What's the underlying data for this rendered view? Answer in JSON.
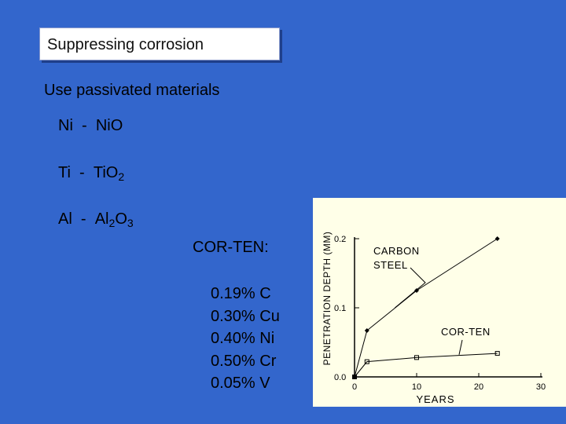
{
  "slide": {
    "title": "Suppressing corrosion",
    "subtitle": "Use passivated materials",
    "pairs": [
      {
        "metal": "Ni",
        "sep": "-",
        "oxide_base": "NiO",
        "oxide_sub": ""
      },
      {
        "metal": "Ti",
        "sep": "-",
        "oxide_base": "TiO",
        "oxide_sub": "2"
      },
      {
        "metal": "Al",
        "sep": "-",
        "oxide_base": "Al",
        "oxide_sub": "2",
        "oxide_rest": "O",
        "oxide_sub2": "3"
      }
    ],
    "corten_label": "COR-TEN:",
    "composition": [
      {
        "percent": "0.19%",
        "element": "C"
      },
      {
        "percent": "0.30%",
        "element": "Cu"
      },
      {
        "percent": "0.40%",
        "element": "Ni"
      },
      {
        "percent": "0.50%",
        "element": "Cr"
      },
      {
        "percent": "0.05%",
        "element": "V"
      }
    ]
  },
  "chart_data": {
    "type": "line",
    "xlabel": "YEARS",
    "ylabel": "PENETRATION DEPTH (MM)",
    "xlim": [
      0,
      30
    ],
    "ylim": [
      0,
      0.2
    ],
    "xticks": [
      "0",
      "10",
      "20",
      "30"
    ],
    "yticks": [
      "0.0",
      "0.1",
      "0.2"
    ],
    "grid": false,
    "series": [
      {
        "name": "CARBON STEEL",
        "marker": "filled-diamond",
        "x": [
          0,
          2,
          10,
          23
        ],
        "y": [
          0,
          0.067,
          0.125,
          0.2
        ]
      },
      {
        "name": "COR-TEN",
        "marker": "open-square",
        "x": [
          0,
          2,
          10,
          23
        ],
        "y": [
          0,
          0.022,
          0.028,
          0.034
        ]
      }
    ],
    "colors": {
      "background": "#ffffe8",
      "ink": "#000000"
    }
  }
}
